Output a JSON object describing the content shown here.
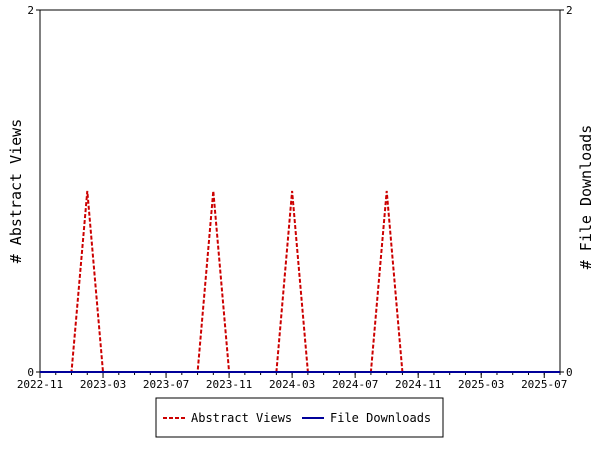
{
  "chart_data": {
    "type": "line",
    "y_left_label": "# Abstract Views",
    "y_right_label": "# File Downloads",
    "ylim": [
      0,
      2
    ],
    "y_ticks": [
      "0",
      "2"
    ],
    "x_range": [
      "2022-11",
      "2025-08"
    ],
    "x_tick_labels": [
      "2022-11",
      "2023-03",
      "2023-07",
      "2023-11",
      "2024-03",
      "2024-07",
      "2024-11",
      "2025-03",
      "2025-07"
    ],
    "legend_position": "bottom",
    "series": [
      {
        "name": "Abstract Views",
        "color": "#cc0000",
        "style": "dashed",
        "points": [
          [
            "2022-11",
            0
          ],
          [
            "2023-01",
            0
          ],
          [
            "2023-02",
            1
          ],
          [
            "2023-03",
            0
          ],
          [
            "2023-09",
            0
          ],
          [
            "2023-10",
            1
          ],
          [
            "2023-11",
            0
          ],
          [
            "2024-02",
            0
          ],
          [
            "2024-03",
            1
          ],
          [
            "2024-04",
            0
          ],
          [
            "2024-08",
            0
          ],
          [
            "2024-09",
            1
          ],
          [
            "2024-10",
            0
          ],
          [
            "2025-08",
            0
          ]
        ]
      },
      {
        "name": "File Downloads",
        "color": "#000099",
        "style": "solid",
        "points": [
          [
            "2022-11",
            0
          ],
          [
            "2025-08",
            0
          ]
        ]
      }
    ]
  }
}
